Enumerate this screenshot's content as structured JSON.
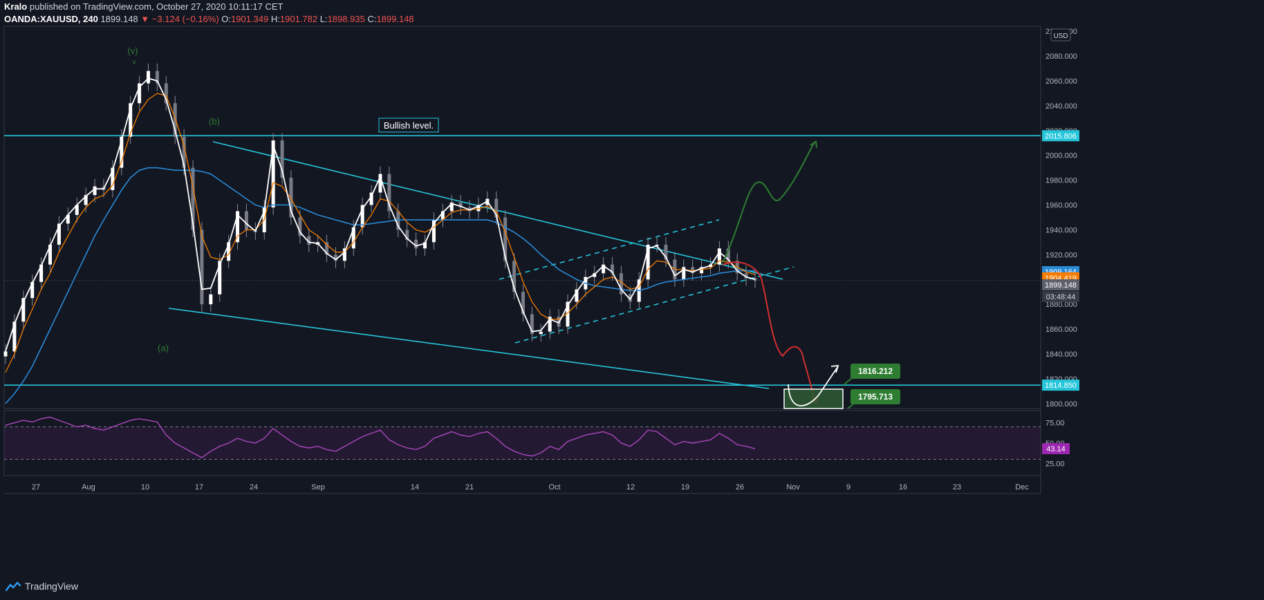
{
  "header": {
    "author": "Kralo",
    "published": "published on TradingView.com, October 27, 2020 10:11:17 CET",
    "symbol": "OANDA:XAUUSD, 240",
    "last": "1899.148",
    "change": "−3.124 (−0.16%)",
    "o_label": "O:",
    "o": "1901.349",
    "h_label": "H:",
    "h": "1901.782",
    "l_label": "L:",
    "l": "1898.935",
    "c_label": "C:",
    "c": "1899.148"
  },
  "footer": {
    "brand": "TradingView"
  },
  "chart_data": {
    "type": "line",
    "currency": "USD",
    "x_ticks": [
      "27",
      "Aug",
      "10",
      "17",
      "24",
      "Sep",
      "14",
      "21",
      "Oct",
      "12",
      "19",
      "26",
      "Nov",
      "9",
      "16",
      "23",
      "Dec"
    ],
    "price_axis": {
      "ticks": [
        1800,
        1820,
        1840,
        1860,
        1880,
        1900,
        1920,
        1940,
        1960,
        1980,
        2000,
        2020,
        2040,
        2060,
        2080,
        2100
      ],
      "labels": [
        "1800.000",
        "1820.000",
        "1840.000",
        "1860.000",
        "1880.000",
        "1900.000",
        "1920.000",
        "1940.000",
        "1960.000",
        "1980.000",
        "2000.000",
        "2020.000",
        "2040.000",
        "2060.000",
        "2080.000",
        "2100.000"
      ],
      "range": [
        1796,
        2104
      ]
    },
    "series": [
      {
        "type": "candlestick",
        "color": "#ffffff",
        "values": [
          1842,
          1866,
          1885,
          1898,
          1912,
          1928,
          1945,
          1952,
          1960,
          1968,
          1975,
          1972,
          1990,
          2015,
          2042,
          2058,
          2068,
          2058,
          2042,
          2015,
          1990,
          1940,
          1880,
          1888,
          1915,
          1930,
          1955,
          1940,
          1938,
          1958,
          2012,
          1982,
          1950,
          1935,
          1928,
          1930,
          1920,
          1915,
          1925,
          1942,
          1960,
          1970,
          1985,
          1955,
          1940,
          1932,
          1925,
          1930,
          1948,
          1955,
          1962,
          1958,
          1955,
          1960,
          1965,
          1950,
          1915,
          1890,
          1872,
          1856,
          1858,
          1870,
          1862,
          1882,
          1892,
          1902,
          1905,
          1912,
          1905,
          1888,
          1882,
          1900,
          1928,
          1928,
          1916,
          1900,
          1910,
          1905,
          1910,
          1912,
          1925,
          1915,
          1905,
          1901,
          1899
        ]
      },
      {
        "type": "line",
        "color": "#ffffff",
        "description": "fast moving average",
        "values": [
          1842,
          1864,
          1882,
          1897,
          1911,
          1927,
          1943,
          1952,
          1960,
          1967,
          1973,
          1973,
          1988,
          2012,
          2038,
          2055,
          2062,
          2060,
          2045,
          2020,
          1992,
          1945,
          1892,
          1893,
          1912,
          1928,
          1952,
          1945,
          1939,
          1955,
          2008,
          1988,
          1955,
          1938,
          1930,
          1929,
          1921,
          1916,
          1922,
          1941,
          1957,
          1967,
          1983,
          1960,
          1943,
          1933,
          1927,
          1929,
          1945,
          1954,
          1961,
          1959,
          1956,
          1959,
          1963,
          1952,
          1918,
          1893,
          1874,
          1858,
          1859,
          1868,
          1865,
          1879,
          1890,
          1900,
          1904,
          1911,
          1906,
          1892,
          1884,
          1897,
          1925,
          1927,
          1918,
          1903,
          1908,
          1906,
          1909,
          1911,
          1922,
          1916,
          1907,
          1902,
          1900
        ]
      },
      {
        "type": "line",
        "color": "#f57c00",
        "description": "medium moving average",
        "values": [
          1825,
          1840,
          1860,
          1876,
          1892,
          1905,
          1922,
          1935,
          1948,
          1958,
          1965,
          1968,
          1976,
          1995,
          2018,
          2035,
          2045,
          2050,
          2048,
          2030,
          2008,
          1975,
          1935,
          1918,
          1916,
          1920,
          1935,
          1940,
          1940,
          1948,
          1978,
          1975,
          1965,
          1952,
          1940,
          1935,
          1928,
          1922,
          1922,
          1930,
          1942,
          1952,
          1965,
          1963,
          1955,
          1946,
          1940,
          1938,
          1942,
          1948,
          1954,
          1956,
          1956,
          1957,
          1959,
          1955,
          1938,
          1918,
          1898,
          1882,
          1872,
          1868,
          1868,
          1873,
          1880,
          1888,
          1894,
          1900,
          1902,
          1898,
          1892,
          1894,
          1908,
          1915,
          1914,
          1908,
          1908,
          1907,
          1908,
          1909,
          1915,
          1914,
          1910,
          1906,
          1904
        ]
      },
      {
        "type": "line",
        "color": "#2a8ad6",
        "description": "slow moving average",
        "values": [
          1800,
          1808,
          1818,
          1830,
          1845,
          1860,
          1875,
          1890,
          1905,
          1920,
          1935,
          1948,
          1960,
          1972,
          1982,
          1988,
          1990,
          1990,
          1989,
          1988,
          1988,
          1988,
          1987,
          1985,
          1980,
          1975,
          1970,
          1965,
          1960,
          1958,
          1960,
          1960,
          1960,
          1958,
          1955,
          1952,
          1950,
          1948,
          1946,
          1944,
          1944,
          1945,
          1946,
          1947,
          1948,
          1948,
          1948,
          1948,
          1948,
          1948,
          1948,
          1948,
          1948,
          1948,
          1948,
          1946,
          1942,
          1938,
          1933,
          1927,
          1920,
          1914,
          1908,
          1904,
          1900,
          1897,
          1895,
          1894,
          1893,
          1892,
          1891,
          1891,
          1893,
          1896,
          1898,
          1899,
          1900,
          1901,
          1902,
          1903,
          1905,
          1906,
          1907,
          1907,
          1907
        ]
      }
    ],
    "price_labels": [
      {
        "value": 2015.806,
        "text": "2015.806",
        "color": "#26c6da"
      },
      {
        "value": 1909.164,
        "text": "1909.164",
        "color": "#2a8ad6"
      },
      {
        "value": 1904.419,
        "text": "1904.419",
        "color": "#f57c00"
      },
      {
        "value": 1899.148,
        "text": "1899.148",
        "color": "#5d606b"
      },
      {
        "value": 1814.85,
        "text": "1814.850",
        "color": "#26c6da"
      }
    ],
    "countdown": "03:48:44",
    "wave_labels": [
      "(v)",
      "v",
      "(b)",
      "(a)"
    ],
    "annotations": {
      "bullish_level": "Bullish level.",
      "target_high": "1816.212",
      "target_low": "1795.713"
    },
    "colors": {
      "cyan": "#26c6da",
      "green": "#2e7d32",
      "red": "#d32f2f",
      "purple": "#9c27b0"
    }
  },
  "rsi": {
    "value_label": "43.14",
    "levels": [
      75,
      50,
      25
    ],
    "level_labels": [
      "75.00",
      "50.00",
      "25.00"
    ],
    "upper_band": 70,
    "lower_band": 30,
    "values": [
      72,
      75,
      78,
      76,
      80,
      82,
      78,
      74,
      70,
      72,
      68,
      66,
      70,
      74,
      78,
      80,
      78,
      76,
      60,
      50,
      44,
      38,
      32,
      40,
      46,
      50,
      56,
      52,
      50,
      56,
      68,
      60,
      52,
      46,
      44,
      46,
      42,
      40,
      46,
      52,
      58,
      62,
      66,
      54,
      48,
      44,
      42,
      46,
      56,
      60,
      64,
      60,
      58,
      62,
      64,
      56,
      46,
      40,
      36,
      34,
      38,
      46,
      42,
      52,
      56,
      60,
      62,
      64,
      60,
      50,
      46,
      54,
      66,
      64,
      56,
      48,
      52,
      50,
      52,
      54,
      62,
      56,
      48,
      46,
      43
    ]
  }
}
